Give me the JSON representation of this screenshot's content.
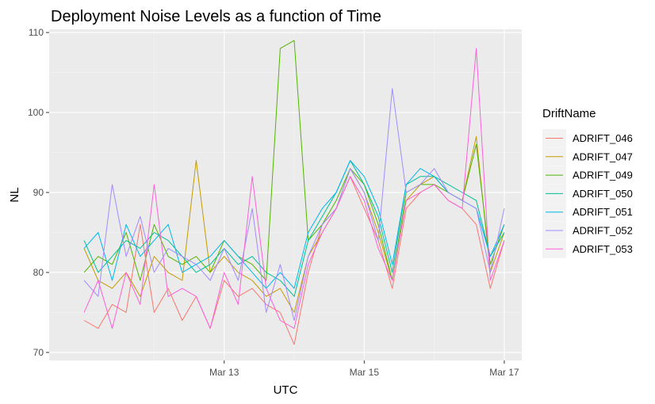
{
  "chart_data": {
    "type": "line",
    "title": "Deployment Noise Levels as a function of Time",
    "xlabel": "UTC",
    "ylabel": "NL",
    "x_ticks": [
      "Mar 13",
      "Mar 15",
      "Mar 17"
    ],
    "x_tick_values": [
      13,
      15,
      17
    ],
    "xlim": [
      10.5,
      17.25
    ],
    "y_ticks": [
      "70",
      "80",
      "90",
      "100",
      "110"
    ],
    "y_tick_values": [
      70,
      80,
      90,
      100,
      110
    ],
    "ylim": [
      69,
      110.4
    ],
    "grid": true,
    "legend": {
      "title": "DriftName",
      "position": "right"
    },
    "series": [
      {
        "name": "ADRIFT_046",
        "color": "#F8766D",
        "x": [
          11.0,
          11.2,
          11.4,
          11.6,
          11.8,
          12.0,
          12.2,
          12.4,
          12.6,
          12.8,
          13.0,
          13.2,
          13.4,
          13.6,
          13.8,
          14.0,
          14.2,
          14.4,
          14.6,
          14.8,
          15.0,
          15.2,
          15.4,
          15.6,
          15.8,
          16.0,
          16.2,
          16.4,
          16.6,
          16.8,
          17.0
        ],
        "y": [
          74,
          73,
          76,
          75,
          86,
          75,
          78,
          74,
          77,
          73,
          79,
          77,
          78,
          76,
          75,
          71,
          80,
          86,
          88,
          92,
          88,
          84,
          78,
          88,
          90,
          91,
          89,
          88,
          86,
          78,
          84
        ]
      },
      {
        "name": "ADRIFT_047",
        "color": "#C49A00",
        "x": [
          11.0,
          11.2,
          11.4,
          11.6,
          11.8,
          12.0,
          12.2,
          12.4,
          12.6,
          12.8,
          13.0,
          13.2,
          13.4,
          13.6,
          13.8,
          14.0,
          14.2,
          14.4,
          14.6,
          14.8,
          15.0,
          15.2,
          15.4,
          15.6,
          15.8,
          16.0,
          16.2,
          16.4,
          16.6,
          16.8,
          17.0
        ],
        "y": [
          83,
          79,
          78,
          80,
          77,
          82,
          80,
          79,
          94,
          80,
          82,
          80,
          79,
          77,
          78,
          75,
          82,
          85,
          88,
          93,
          90,
          85,
          79,
          89,
          91,
          92,
          90,
          89,
          97,
          80,
          85
        ]
      },
      {
        "name": "ADRIFT_049",
        "color": "#53B400",
        "x": [
          11.0,
          11.2,
          11.4,
          11.6,
          11.8,
          12.0,
          12.2,
          12.4,
          12.6,
          12.8,
          13.0,
          13.2,
          13.4,
          13.6,
          13.8,
          14.0,
          14.2,
          14.4,
          14.6,
          14.8,
          15.0,
          15.2,
          15.4,
          15.6,
          15.8,
          16.0,
          16.2,
          16.4,
          16.6,
          16.8,
          17.0
        ],
        "y": [
          80,
          82,
          81,
          85,
          79,
          86,
          82,
          81,
          82,
          80,
          84,
          82,
          81,
          79,
          108,
          109,
          84,
          86,
          89,
          93,
          91,
          86,
          79,
          90,
          91,
          91,
          90,
          89,
          96,
          81,
          86
        ]
      },
      {
        "name": "ADRIFT_050",
        "color": "#00C094",
        "x": [
          11.0,
          11.2,
          11.4,
          11.6,
          11.8,
          12.0,
          12.2,
          12.4,
          12.6,
          12.8,
          13.0,
          13.2,
          13.4,
          13.6,
          13.8,
          14.0,
          14.2,
          14.4,
          14.6,
          14.8,
          15.0,
          15.2,
          15.4,
          15.6,
          15.8,
          16.0,
          16.2,
          16.4,
          16.6,
          16.8,
          17.0
        ],
        "y": [
          84,
          80,
          82,
          84,
          83,
          85,
          84,
          82,
          80,
          81,
          83,
          81,
          82,
          80,
          79,
          77,
          84,
          87,
          90,
          94,
          91,
          87,
          80,
          91,
          92,
          92,
          91,
          90,
          89,
          82,
          85
        ]
      },
      {
        "name": "ADRIFT_051",
        "color": "#00B6EB",
        "x": [
          11.0,
          11.2,
          11.4,
          11.6,
          11.8,
          12.0,
          12.2,
          12.4,
          12.6,
          12.8,
          13.0,
          13.2,
          13.4,
          13.6,
          13.8,
          14.0,
          14.2,
          14.4,
          14.6,
          14.8,
          15.0,
          15.2,
          15.4,
          15.6,
          15.8,
          16.0,
          16.2,
          16.4,
          16.6,
          16.8,
          17.0
        ],
        "y": [
          83,
          85,
          79,
          86,
          82,
          84,
          86,
          80,
          81,
          82,
          84,
          82,
          80,
          78,
          80,
          78,
          85,
          88,
          90,
          94,
          92,
          88,
          81,
          91,
          93,
          92,
          90,
          89,
          88,
          82,
          86
        ]
      },
      {
        "name": "ADRIFT_052",
        "color": "#A58AFF",
        "x": [
          11.0,
          11.2,
          11.4,
          11.6,
          11.8,
          12.0,
          12.2,
          12.4,
          12.6,
          12.8,
          13.0,
          13.2,
          13.4,
          13.6,
          13.8,
          14.0,
          14.2,
          14.4,
          14.6,
          14.8,
          15.0,
          15.2,
          15.4,
          15.6,
          15.8,
          16.0,
          16.2,
          16.4,
          16.6,
          16.8,
          17.0
        ],
        "y": [
          79,
          77,
          91,
          82,
          87,
          80,
          83,
          82,
          81,
          79,
          83,
          79,
          88,
          75,
          81,
          74,
          82,
          86,
          88,
          93,
          90,
          84,
          103,
          90,
          91,
          93,
          90,
          89,
          88,
          80,
          88
        ]
      },
      {
        "name": "ADRIFT_053",
        "color": "#FB61D7",
        "x": [
          11.0,
          11.2,
          11.4,
          11.6,
          11.8,
          12.0,
          12.2,
          12.4,
          12.6,
          12.8,
          13.0,
          13.2,
          13.4,
          13.6,
          13.8,
          14.0,
          14.2,
          14.4,
          14.6,
          14.8,
          15.0,
          15.2,
          15.4,
          15.6,
          15.8,
          16.0,
          16.2,
          16.4,
          16.6,
          16.8,
          17.0
        ],
        "y": [
          75,
          79,
          73,
          80,
          76,
          91,
          77,
          78,
          77,
          73,
          80,
          76,
          92,
          78,
          74,
          73,
          81,
          85,
          88,
          92,
          89,
          83,
          79,
          89,
          90,
          91,
          89,
          88,
          108,
          79,
          84
        ]
      }
    ]
  }
}
